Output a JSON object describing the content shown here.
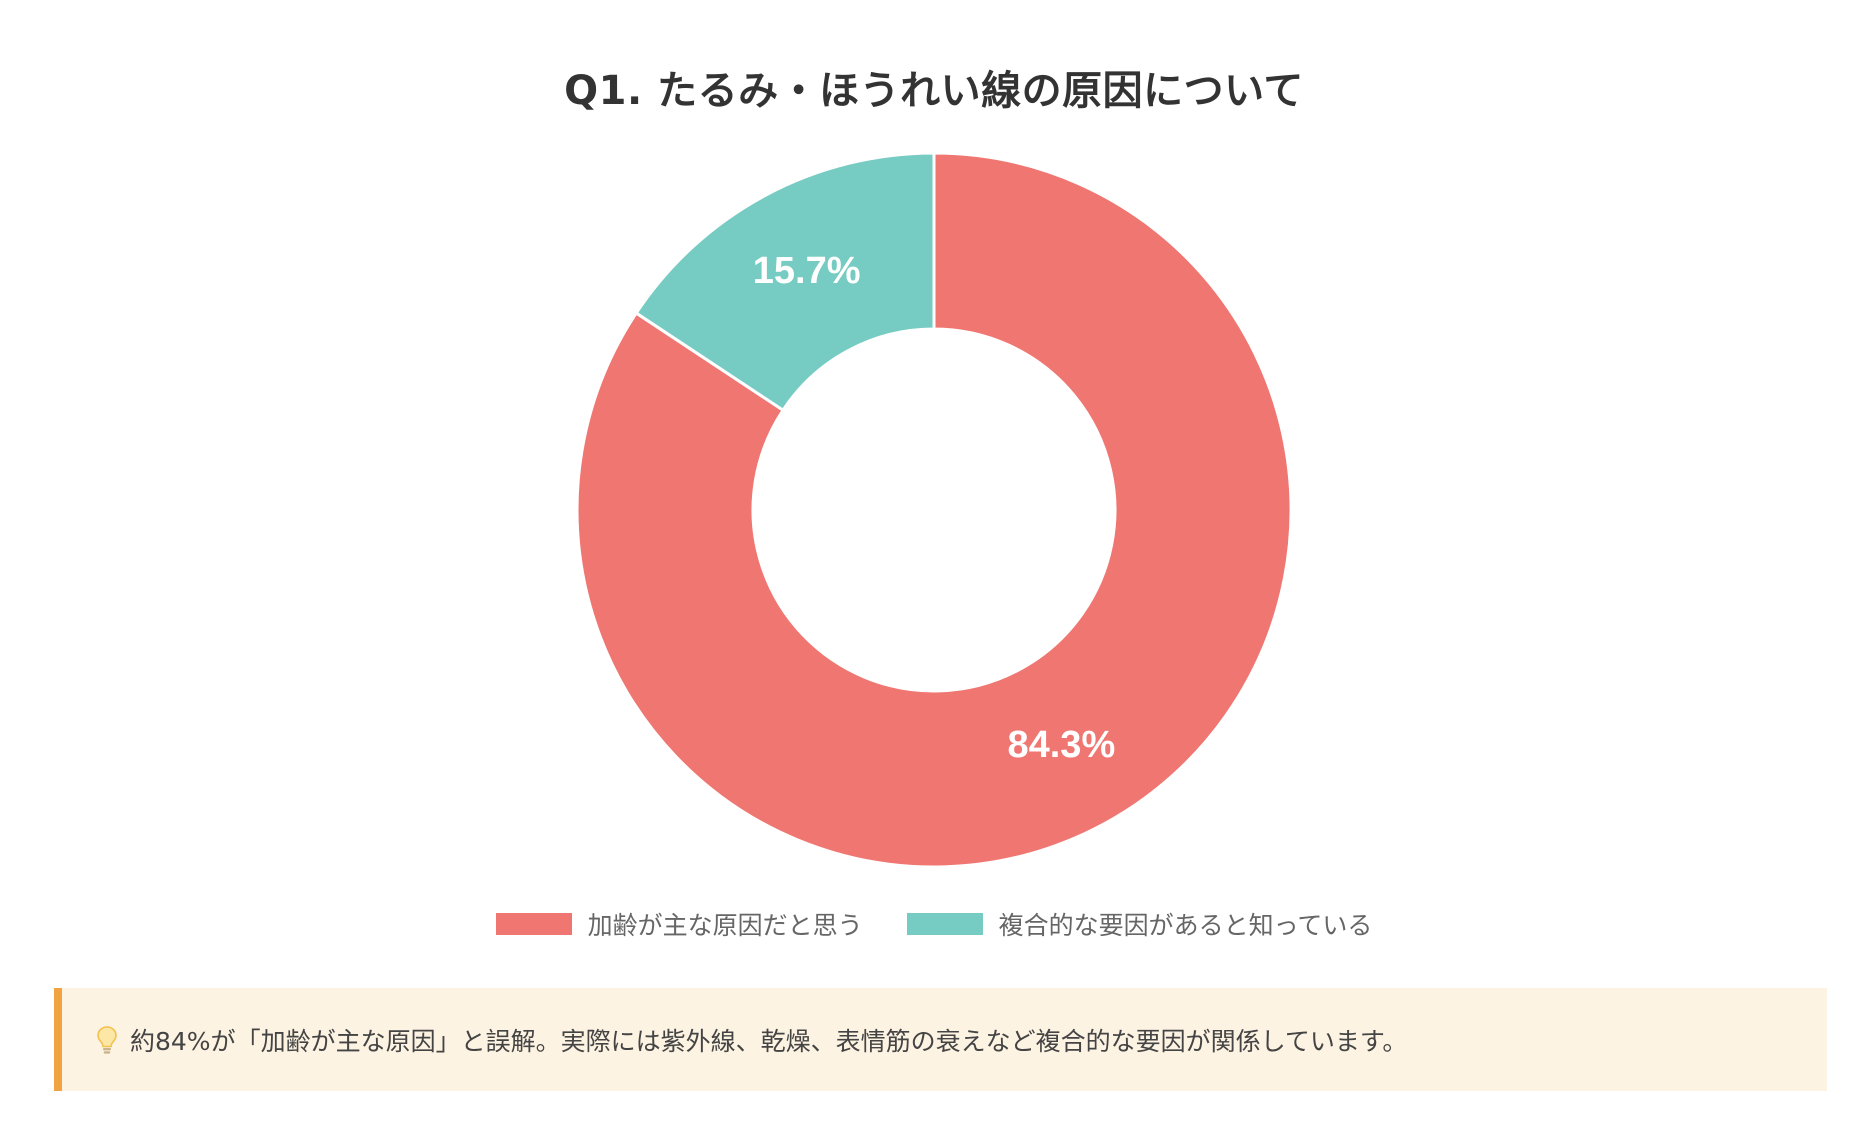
{
  "chart_data": {
    "type": "pie",
    "variant": "donut",
    "title": "Q1. たるみ・ほうれい線の原因について",
    "categories": [
      "加齢が主な原因だと思う",
      "複合的な要因があると知っている"
    ],
    "values": [
      84.3,
      15.7
    ],
    "value_labels": [
      "84.3%",
      "15.7%"
    ],
    "colors": [
      "#ef7671",
      "#76cbc2"
    ],
    "legend_position": "bottom"
  },
  "note": {
    "icon": "lightbulb-icon",
    "text": "約84%が「加齢が主な原因」と誤解。実際には紫外線、乾燥、表情筋の衰えなど複合的な要因が関係しています。",
    "border_color": "#f2a341",
    "background_color": "#fdf3e3"
  }
}
